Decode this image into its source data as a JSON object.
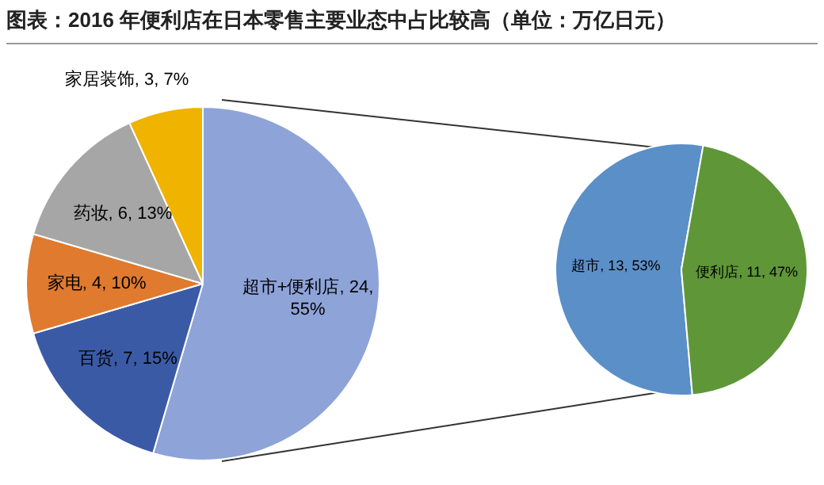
{
  "chart_data": [
    {
      "type": "pie",
      "title": "图表：2016 年便利店在日本零售主要业态中占比较高（单位：万亿日元）",
      "categories": [
        "超市+便利店",
        "百货",
        "家电",
        "药妆",
        "家居装饰"
      ],
      "values": [
        24,
        7,
        4,
        6,
        3
      ],
      "colors": [
        "#8ea3d8",
        "#3b5aa6",
        "#e07a2e",
        "#a6a6a6",
        "#efb300"
      ],
      "value_labels": [
        "24, 55%",
        "7, 15%",
        "4, 10%",
        "6, 13%",
        "3, 7%"
      ]
    },
    {
      "type": "pie",
      "categories": [
        "超市",
        "便利店"
      ],
      "values": [
        13,
        11
      ],
      "colors": [
        "#5b8fc8",
        "#5f9638"
      ],
      "value_labels": [
        "13, 53%",
        "11, 47%"
      ]
    }
  ]
}
